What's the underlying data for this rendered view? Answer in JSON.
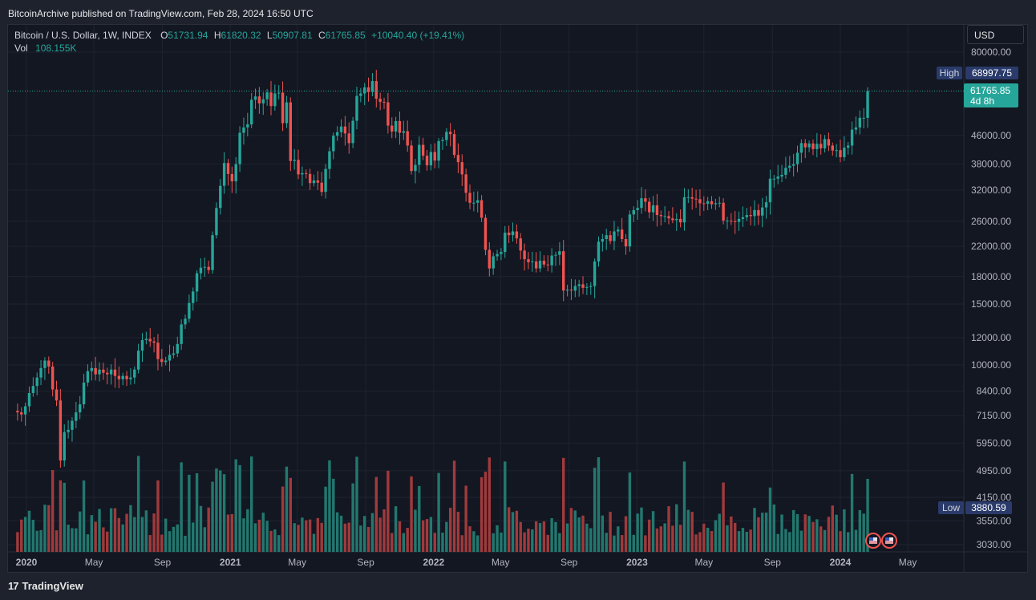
{
  "header": {
    "published": "BitcoinArchive published on TradingView.com, Feb 28, 2024 16:50 UTC"
  },
  "legend": {
    "symbol": "Bitcoin / U.S. Dollar, 1W, INDEX",
    "o_label": "O",
    "o_value": "51731.94",
    "h_label": "H",
    "h_value": "61820.32",
    "l_label": "L",
    "l_value": "50907.81",
    "c_label": "C",
    "c_value": "61765.85",
    "change": "+10040.40 (+19.41%)",
    "vol_label": "Vol",
    "vol_value": "108.155K"
  },
  "currency_button": "USD",
  "footer": {
    "brand": "TradingView",
    "logo_mark": "17"
  },
  "colors": {
    "up": "#26a69a",
    "down": "#ef5350",
    "up_volume": "#22786f",
    "down_volume": "#a03a3c",
    "high_badge": "#2a3b6b",
    "last_price_badge": "#26a69a",
    "grid": "#1f2330",
    "background": "#131722"
  },
  "flag_icons": [
    "us-flag-icon",
    "us-flag-icon"
  ],
  "chart_data": {
    "type": "candlestick",
    "title": "Bitcoin / U.S. Dollar, 1W, INDEX",
    "y_scale": "log",
    "ylim": [
      2950,
      90000
    ],
    "y_ticks": [
      80000,
      46000,
      38000,
      32000,
      26000,
      22000,
      18000,
      15000,
      12000,
      10000,
      8400,
      7150,
      5950,
      4950,
      4150,
      3550,
      3030
    ],
    "y_tick_labels": [
      "80000.00",
      "46000.00",
      "38000.00",
      "32000.00",
      "26000.00",
      "22000.00",
      "18000.00",
      "15000.00",
      "12000.00",
      "10000.00",
      "8400.00",
      "7150.00",
      "5950.00",
      "4950.00",
      "4150.00",
      "3550.00",
      "3030.00"
    ],
    "x_labels": [
      {
        "date": "2020-01-01",
        "label": "2020",
        "bold": true
      },
      {
        "date": "2020-05-01",
        "label": "May"
      },
      {
        "date": "2020-09-01",
        "label": "Sep"
      },
      {
        "date": "2021-01-01",
        "label": "2021",
        "bold": true
      },
      {
        "date": "2021-05-01",
        "label": "May"
      },
      {
        "date": "2021-09-01",
        "label": "Sep"
      },
      {
        "date": "2022-01-01",
        "label": "2022",
        "bold": true
      },
      {
        "date": "2022-05-01",
        "label": "May"
      },
      {
        "date": "2022-09-01",
        "label": "Sep"
      },
      {
        "date": "2023-01-01",
        "label": "2023",
        "bold": true
      },
      {
        "date": "2023-05-01",
        "label": "May"
      },
      {
        "date": "2023-09-01",
        "label": "Sep"
      },
      {
        "date": "2024-01-01",
        "label": "2024",
        "bold": true
      },
      {
        "date": "2024-05-01",
        "label": "May"
      }
    ],
    "x_range": [
      "2019-12-18",
      "2024-06-20"
    ],
    "high_marker": {
      "label": "High",
      "value": 68997.75,
      "text": "68997.75"
    },
    "low_marker": {
      "label": "Low",
      "value": 3880.59,
      "text": "3880.59"
    },
    "last_price": {
      "value": 61765.85,
      "text": "61765.85",
      "countdown": "4d 8h"
    },
    "closes": [
      [
        7300,
        7200,
        7600,
        8300,
        8700,
        9200,
        9800,
        10300,
        9900,
        8500,
        7900,
        5300,
        6400,
        6500,
        6900,
        7300,
        7700,
        8900,
        9600,
        9800,
        9400,
        9700,
        9500,
        9400,
        9700,
        9300,
        9100,
        9300,
        9100,
        9200,
        9700,
        11000,
        11800,
        11900,
        11700,
        11600,
        10400,
        10200,
        10300,
        10700,
        10800,
        11500,
        13100,
        13600,
        15100,
        16300,
        18400,
        19100,
        19200,
        18800,
        23700,
        28400,
        32900,
        38300,
        35600,
        33900,
        38000,
        46800,
        48500,
        49500,
        58300,
        59600,
        56900,
        58500,
        61200,
        55900,
        60800,
        61100,
        49900,
        57300,
        38800,
        39100,
        35500,
        35800,
        35600,
        33500,
        34100,
        33600,
        31600,
        36800,
        41400,
        45900,
        47000,
        48800,
        46600,
        43700,
        50700,
        59800,
        60800,
        63300,
        61400,
        66000,
        58700,
        57500,
        57300,
        49100,
        47200,
        50600,
        46800,
        47300,
        43000,
        36300,
        37800,
        43200,
        40200,
        37700,
        41200,
        38900,
        44300,
        44600,
        47100,
        46400,
        40400,
        38500,
        35500,
        31400,
        29400,
        29400,
        29900,
        26600,
        21500,
        19000,
        20600,
        20900,
        21200,
        24100,
        23700,
        24300,
        23200,
        21400,
        20200,
        19800,
        19900,
        19000,
        20000,
        19500,
        19400,
        20700,
        20800,
        21300,
        16400,
        16500,
        16400,
        16900,
        17100,
        16700,
        16800,
        16900,
        19900,
        22700,
        23100,
        23700,
        22800,
        24300,
        24600,
        23100,
        22000,
        27200,
        28000,
        28400,
        30300,
        29600,
        27600,
        28900,
        27100,
        26900,
        26900,
        26500,
        26200,
        26400,
        25800,
        30500,
        30500,
        30200,
        30100,
        29300,
        29200,
        29700,
        29100,
        29300,
        29400,
        26100,
        26100,
        26000,
        25900,
        26400,
        26700,
        27100,
        26900,
        28000,
        27000,
        28500,
        29500,
        34500,
        34500,
        35000,
        35400,
        37100,
        37600,
        38000,
        41000,
        43700,
        42500,
        43600,
        42000,
        43500,
        42200,
        44900,
        43000,
        41600,
        41700,
        39800,
        42400,
        43000,
        47800,
        48500,
        51700,
        51700,
        61765.85
      ]
    ],
    "volume_note": "Volume bars shown along bottom of price pane; coloured by candle direction"
  }
}
